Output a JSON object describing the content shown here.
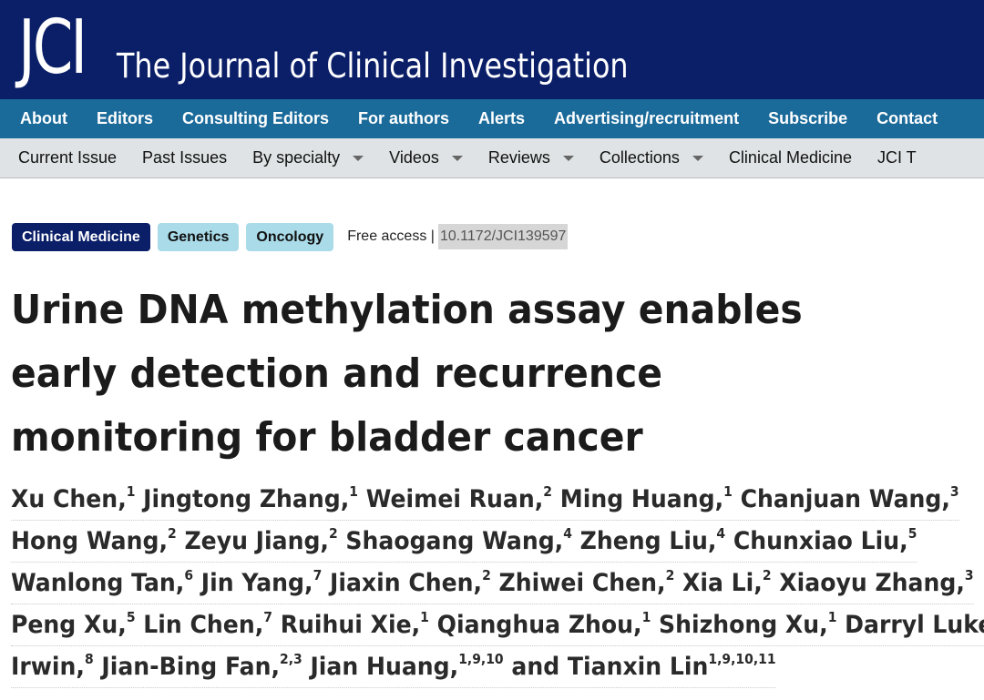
{
  "header": {
    "logo": "JCI",
    "journal_name": "The Journal of Clinical Investigation",
    "brand_color": "#0b1f68"
  },
  "nav_primary": [
    "About",
    "Editors",
    "Consulting Editors",
    "For authors",
    "Alerts",
    "Advertising/recruitment",
    "Subscribe",
    "Contact"
  ],
  "nav_secondary": [
    {
      "label": "Current Issue",
      "dropdown": false
    },
    {
      "label": "Past Issues",
      "dropdown": false
    },
    {
      "label": "By specialty",
      "dropdown": true
    },
    {
      "label": "Videos",
      "dropdown": true
    },
    {
      "label": "Reviews",
      "dropdown": true
    },
    {
      "label": "Collections",
      "dropdown": true
    },
    {
      "label": "Clinical Medicine",
      "dropdown": false
    },
    {
      "label": "JCI T",
      "dropdown": false
    }
  ],
  "article": {
    "tags": [
      "Clinical Medicine",
      "Genetics",
      "Oncology"
    ],
    "access": "Free access |",
    "doi": "10.1172/JCI139597",
    "title": "Urine DNA methylation assay enables early detection and recurrence monitoring for bladder cancer",
    "author_lines": [
      [
        {
          "name": "Xu Chen,",
          "sup": "1"
        },
        {
          "name": "Jingtong Zhang,",
          "sup": "1"
        },
        {
          "name": "Weimei Ruan,",
          "sup": "2"
        },
        {
          "name": "Ming Huang,",
          "sup": "1"
        },
        {
          "name": "Chanjuan Wang,",
          "sup": "3"
        }
      ],
      [
        {
          "name": "Hong Wang,",
          "sup": "2"
        },
        {
          "name": "Zeyu Jiang,",
          "sup": "2"
        },
        {
          "name": "Shaogang Wang,",
          "sup": "4"
        },
        {
          "name": "Zheng Liu,",
          "sup": "4"
        },
        {
          "name": "Chunxiao Liu,",
          "sup": "5"
        }
      ],
      [
        {
          "name": "Wanlong Tan,",
          "sup": "6"
        },
        {
          "name": "Jin Yang,",
          "sup": "7"
        },
        {
          "name": "Jiaxin Chen,",
          "sup": "2"
        },
        {
          "name": "Zhiwei Chen,",
          "sup": "2"
        },
        {
          "name": "Xia Li,",
          "sup": "2"
        },
        {
          "name": "Xiaoyu Zhang,",
          "sup": "3"
        }
      ],
      [
        {
          "name": "Peng Xu,",
          "sup": "5"
        },
        {
          "name": "Lin Chen,",
          "sup": "7"
        },
        {
          "name": "Ruihui Xie,",
          "sup": "1"
        },
        {
          "name": "Qianghua Zhou,",
          "sup": "1"
        },
        {
          "name": "Shizhong Xu,",
          "sup": "1"
        },
        {
          "name": "Darryl Luke",
          "sup": ""
        }
      ],
      [
        {
          "name": "Irwin,",
          "sup": "8"
        },
        {
          "name": "Jian-Bing Fan,",
          "sup": "2,3"
        },
        {
          "name": "Jian Huang,",
          "sup": "1,9,10"
        },
        {
          "name": "and Tianxin Lin",
          "sup": "1,9,10,11"
        }
      ]
    ]
  }
}
